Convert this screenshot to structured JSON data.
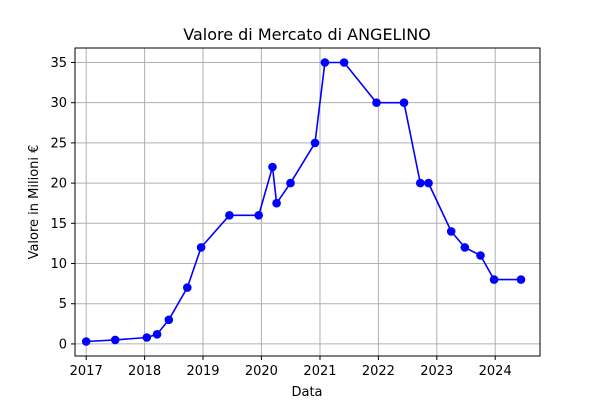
{
  "chart_data": {
    "type": "line",
    "title": "Valore di Mercato di ANGELINO",
    "xlabel": "Data",
    "ylabel": "Valore in Milioni €",
    "x_ticks": [
      "2017",
      "2018",
      "2019",
      "2020",
      "2021",
      "2022",
      "2023",
      "2024"
    ],
    "y_ticks": [
      "0",
      "5",
      "10",
      "15",
      "20",
      "25",
      "30",
      "35"
    ],
    "xlim": [
      "2016-10-23",
      "2024-10-07"
    ],
    "ylim": [
      -1.5,
      36.8
    ],
    "grid": true,
    "line_color": "#0000ff",
    "series": [
      {
        "x": [
          "2017-01-01",
          "2017-07-01",
          "2018-01-15",
          "2018-03-20",
          "2018-06-01",
          "2018-09-25",
          "2018-12-20",
          "2019-06-15",
          "2019-12-15",
          "2020-03-10",
          "2020-04-05",
          "2020-07-01",
          "2020-12-01",
          "2021-02-01",
          "2021-06-01",
          "2021-12-20",
          "2022-06-10",
          "2022-09-20",
          "2022-11-10",
          "2023-04-01",
          "2023-06-25",
          "2023-10-01",
          "2023-12-25",
          "2024-06-10"
        ],
        "y": [
          0.3,
          0.5,
          0.8,
          1.2,
          3,
          7,
          12,
          16,
          16,
          22,
          17.5,
          20,
          25,
          35,
          35,
          30,
          30,
          20,
          20,
          14,
          12,
          11,
          8,
          8
        ]
      }
    ]
  }
}
